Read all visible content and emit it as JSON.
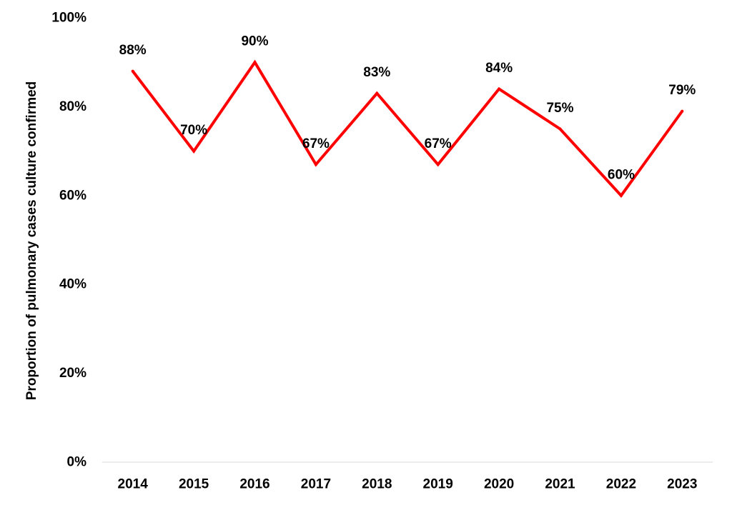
{
  "chart_data": {
    "type": "line",
    "title": "",
    "xlabel": "",
    "ylabel": "Proportion of pulmonary cases culture confirmed",
    "categories": [
      "2014",
      "2015",
      "2016",
      "2017",
      "2018",
      "2019",
      "2020",
      "2021",
      "2022",
      "2023"
    ],
    "series": [
      {
        "values": [
          88,
          70,
          90,
          67,
          83,
          67,
          84,
          75,
          60,
          79
        ],
        "data_labels": [
          "88%",
          "70%",
          "90%",
          "67%",
          "83%",
          "67%",
          "84%",
          "75%",
          "60%",
          "79%"
        ],
        "color": "#ff0000"
      }
    ],
    "ylim": [
      0,
      100
    ],
    "yticks": [
      "0%",
      "20%",
      "40%",
      "60%",
      "80%",
      "100%"
    ],
    "ytick_values": [
      0,
      20,
      40,
      60,
      80,
      100
    ],
    "grid": false,
    "legend": "none"
  }
}
